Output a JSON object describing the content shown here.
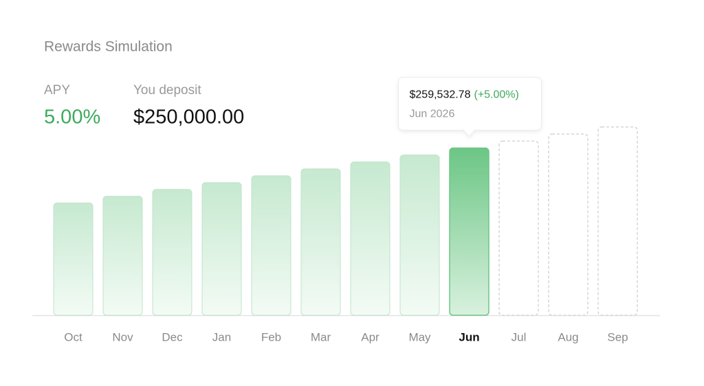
{
  "title": "Rewards Simulation",
  "stats": [
    {
      "label": "APY",
      "value": "5.00%",
      "color": "#3daa5c"
    },
    {
      "label": "You deposit",
      "value": "$250,000.00",
      "color": "#111111"
    }
  ],
  "chart_data": {
    "type": "bar",
    "categories": [
      "Oct",
      "Nov",
      "Dec",
      "Jan",
      "Feb",
      "Mar",
      "Apr",
      "May",
      "Jun",
      "Jul",
      "Aug",
      "Sep"
    ],
    "series": [
      {
        "color": "#6cc685",
        "values": [
          251041.67,
          252087.67,
          253138.03,
          254192.77,
          255251.9,
          256315.45,
          257383.43,
          258455.86,
          259532.78,
          null,
          null,
          null
        ],
        "value_labels": [
          null,
          null,
          null,
          null,
          null,
          null,
          null,
          null,
          "$259,532.78",
          null,
          null,
          null
        ]
      },
      {
        "color": "#d5d5d5",
        "dashed": true,
        "values": [
          null,
          null,
          null,
          null,
          null,
          null,
          null,
          null,
          null,
          260614.17,
          261700.06,
          262790.48
        ]
      }
    ],
    "ylim": [
      233700,
      265000
    ],
    "tooltip": {
      "change": "(+5.00%)",
      "change_color": "#3daa5c",
      "date": "Jun 2026"
    }
  }
}
